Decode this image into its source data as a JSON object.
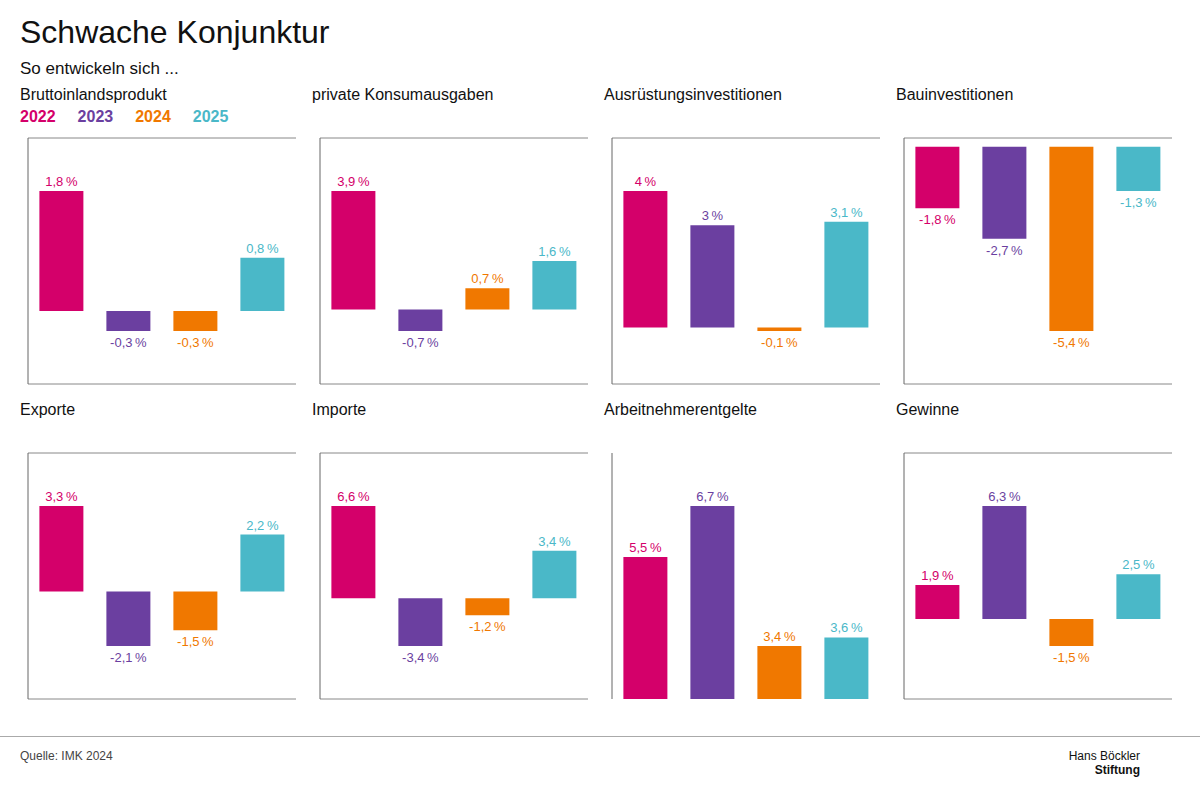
{
  "title": "Schwache Konjunktur",
  "subtitle": "So entwickeln sich ...",
  "annotations": [
    "Quelle: IMK 2024",
    "Hans Böckler",
    "Stiftung"
  ],
  "chart_data": [
    {
      "type": "bar",
      "title": "Bruttoinlandsprodukt",
      "categories": [
        "2022",
        "2023",
        "2024",
        "2025"
      ],
      "values": [
        1.8,
        -0.3,
        -0.3,
        0.8
      ],
      "value_labels": [
        "1,8 %",
        "-0,3 %",
        "-0,3 %",
        "0,8 %"
      ],
      "colors": [
        "#d4006a",
        "#6b3fa0",
        "#f07800",
        "#4ab8c8"
      ],
      "ylim": [
        -1.098,
        2.598
      ],
      "yticks": [
        0
      ],
      "grid": true,
      "data_labels": true,
      "tick_labels": false,
      "legend": "top left"
    },
    {
      "type": "bar",
      "title": "private Konsumausgaben",
      "categories": [
        "2022",
        "2023",
        "2024",
        "2025"
      ],
      "values": [
        3.9,
        -0.7,
        0.7,
        1.6
      ],
      "value_labels": [
        "3,9 %",
        "-0,7 %",
        "0,7 %",
        "1,6 %"
      ],
      "colors": [
        "#d4006a",
        "#6b3fa0",
        "#f07800",
        "#4ab8c8"
      ],
      "ylim": [
        -2.448,
        5.648
      ],
      "yticks": [
        0
      ],
      "grid": true,
      "data_labels": true,
      "tick_labels": false
    },
    {
      "type": "bar",
      "title": "Ausrüstungsinvestitionen",
      "categories": [
        "2022",
        "2023",
        "2024",
        "2025"
      ],
      "values": [
        4.0,
        3.0,
        -0.1,
        3.1
      ],
      "value_labels": [
        "4 %",
        "3 %",
        "-0,1 %",
        "3,1 %"
      ],
      "colors": [
        "#d4006a",
        "#6b3fa0",
        "#f07800",
        "#4ab8c8"
      ],
      "ylim": [
        -1.658,
        5.558
      ],
      "yticks": [
        0
      ],
      "grid": true,
      "data_labels": true,
      "tick_labels": false
    },
    {
      "type": "bar",
      "title": "Bauinvestitionen",
      "categories": [
        "2022",
        "2023",
        "2024",
        "2025"
      ],
      "values": [
        -1.8,
        -2.7,
        -5.4,
        -1.3
      ],
      "value_labels": [
        "-1,8 %",
        "-2,7 %",
        "-5,4 %",
        "-1,3 %"
      ],
      "colors": [
        "#d4006a",
        "#6b3fa0",
        "#f07800",
        "#4ab8c8"
      ],
      "ylim": [
        -6.958,
        0.258
      ],
      "yticks": [
        0
      ],
      "grid": true,
      "data_labels": true,
      "tick_labels": false
    },
    {
      "type": "bar",
      "title": "Exporte",
      "categories": [
        "2022",
        "2023",
        "2024",
        "2025"
      ],
      "values": [
        3.3,
        -2.1,
        -1.5,
        2.2
      ],
      "value_labels": [
        "3,3 %",
        "-2,1 %",
        "-1,5 %",
        "2,2 %"
      ],
      "colors": [
        "#d4006a",
        "#6b3fa0",
        "#f07800",
        "#4ab8c8"
      ],
      "ylim": [
        -4.152,
        5.352
      ],
      "yticks": [
        0
      ],
      "grid": true,
      "data_labels": true,
      "tick_labels": false
    },
    {
      "type": "bar",
      "title": "Importe",
      "categories": [
        "2022",
        "2023",
        "2024",
        "2025"
      ],
      "values": [
        6.6,
        -3.4,
        -1.2,
        3.4
      ],
      "value_labels": [
        "6,6 %",
        "-3,4 %",
        "-1,2 %",
        "3,4 %"
      ],
      "colors": [
        "#d4006a",
        "#6b3fa0",
        "#f07800",
        "#4ab8c8"
      ],
      "ylim": [
        -7.2,
        10.4
      ],
      "yticks": [
        0
      ],
      "grid": true,
      "data_labels": true,
      "tick_labels": false
    },
    {
      "type": "bar",
      "title": "Arbeitnehmerentgelte",
      "categories": [
        "2022",
        "2023",
        "2024",
        "2025"
      ],
      "values": [
        5.5,
        6.7,
        3.4,
        3.6
      ],
      "value_labels": [
        "5,5 %",
        "6,7 %",
        "3,4 %",
        "3,6 %"
      ],
      "colors": [
        "#d4006a",
        "#6b3fa0",
        "#f07800",
        "#4ab8c8"
      ],
      "ylim": [
        2.146,
        7.954
      ],
      "grid": false,
      "data_labels": true,
      "tick_labels": false
    },
    {
      "type": "bar",
      "title": "Gewinne",
      "categories": [
        "2022",
        "2023",
        "2024",
        "2025"
      ],
      "values": [
        1.9,
        6.3,
        -1.5,
        2.5
      ],
      "value_labels": [
        "1,9 %",
        "6,3 %",
        "-1,5 %",
        "2,5 %"
      ],
      "colors": [
        "#d4006a",
        "#6b3fa0",
        "#f07800",
        "#4ab8c8"
      ],
      "ylim": [
        -4.464,
        9.264
      ],
      "yticks": [
        0
      ],
      "grid": true,
      "data_labels": true,
      "tick_labels": false
    }
  ]
}
